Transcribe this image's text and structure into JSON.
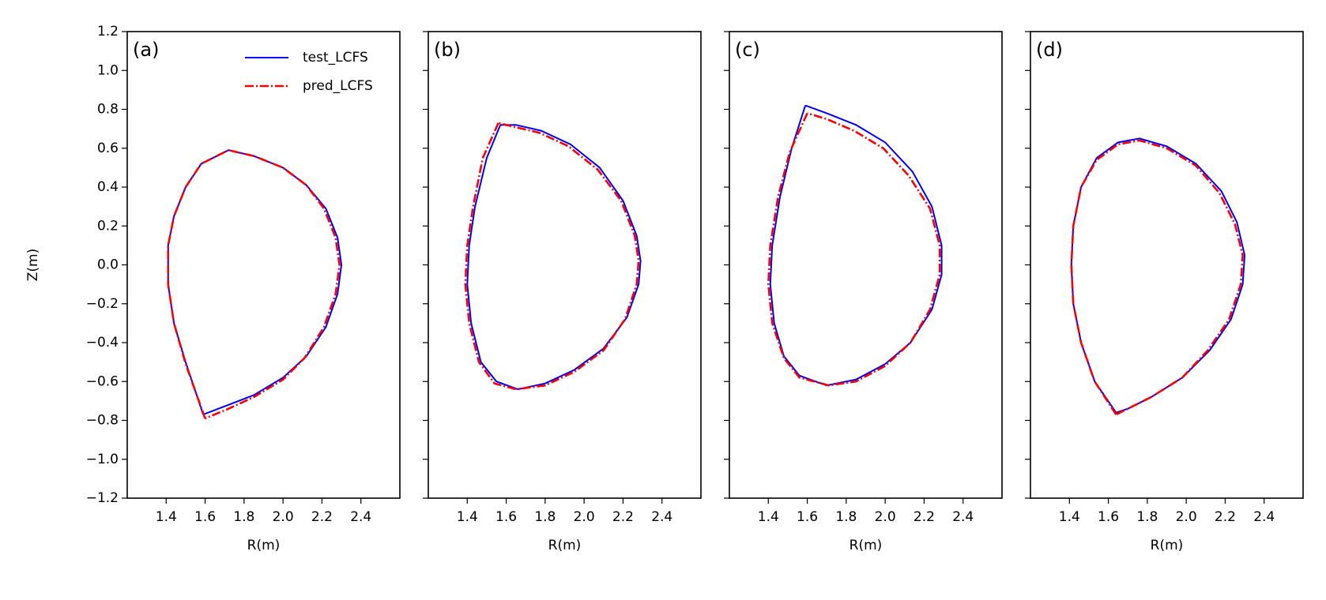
{
  "chart_data": [
    {
      "type": "line",
      "label": "(a)",
      "xlabel": "R(m)",
      "ylabel": "Z(m)",
      "xlim": [
        1.2,
        2.6
      ],
      "ylim": [
        -1.2,
        1.2
      ],
      "xticks": [
        1.4,
        1.6,
        1.8,
        {
          "value": 2.0,
          "label": "2.0"
        },
        2.2,
        2.4
      ],
      "yticks": [
        {
          "value": -1.2,
          "label": "−1.2"
        },
        {
          "value": -1.0,
          "label": "−1.0"
        },
        {
          "value": -0.8,
          "label": "−0.8"
        },
        {
          "value": -0.6,
          "label": "−0.6"
        },
        {
          "value": -0.4,
          "label": "−0.4"
        },
        {
          "value": -0.2,
          "label": "−0.2"
        },
        {
          "value": 0.0,
          "label": "0.0"
        },
        0.2,
        0.4,
        0.6,
        0.8,
        {
          "value": 1.0,
          "label": "1.0"
        },
        1.2
      ],
      "show_ytick_labels": true,
      "legend": "upper right",
      "series": [
        {
          "name": "test_LCFS",
          "color": "#0000ff",
          "linestyle": "solid",
          "x": [
            1.59,
            1.5,
            1.44,
            1.41,
            1.41,
            1.44,
            1.5,
            1.58,
            1.72,
            1.85,
            2.0,
            2.12,
            2.22,
            2.28,
            2.3,
            2.28,
            2.22,
            2.12,
            2.0,
            1.85,
            1.72,
            1.59
          ],
          "values": [
            -0.77,
            -0.5,
            -0.3,
            -0.1,
            0.1,
            0.25,
            0.4,
            0.52,
            0.59,
            0.56,
            0.5,
            0.41,
            0.29,
            0.14,
            0.0,
            -0.15,
            -0.32,
            -0.47,
            -0.58,
            -0.67,
            -0.72,
            -0.77
          ]
        },
        {
          "name": "pred_LCFS",
          "color": "#ff0000",
          "linestyle": "dashdot",
          "x": [
            1.6,
            1.5,
            1.44,
            1.41,
            1.41,
            1.44,
            1.5,
            1.58,
            1.72,
            1.85,
            2.0,
            2.12,
            2.21,
            2.27,
            2.29,
            2.27,
            2.21,
            2.11,
            2.0,
            1.85,
            1.72,
            1.6
          ],
          "values": [
            -0.79,
            -0.51,
            -0.3,
            -0.1,
            0.1,
            0.25,
            0.4,
            0.52,
            0.59,
            0.56,
            0.5,
            0.41,
            0.29,
            0.14,
            0.0,
            -0.15,
            -0.32,
            -0.48,
            -0.59,
            -0.68,
            -0.74,
            -0.79
          ]
        }
      ]
    },
    {
      "type": "line",
      "label": "(b)",
      "xlabel": "R(m)",
      "xlim": [
        1.2,
        2.6
      ],
      "ylim": [
        -1.2,
        1.2
      ],
      "xticks": [
        1.4,
        1.6,
        1.8,
        {
          "value": 2.0,
          "label": "2.0"
        },
        2.2,
        2.4
      ],
      "yticks": [
        -1.2,
        -1.0,
        -0.8,
        -0.6,
        -0.4,
        -0.2,
        0.0,
        0.2,
        0.4,
        0.6,
        0.8,
        1.0,
        1.2
      ],
      "show_ytick_labels": false,
      "series": [
        {
          "color": "#0000ff",
          "linestyle": "solid",
          "x": [
            1.57,
            1.5,
            1.44,
            1.41,
            1.4,
            1.42,
            1.47,
            1.55,
            1.66,
            1.8,
            1.95,
            2.1,
            2.22,
            2.28,
            2.29,
            2.27,
            2.2,
            2.08,
            1.93,
            1.78,
            1.65,
            1.57
          ],
          "values": [
            0.72,
            0.55,
            0.3,
            0.1,
            -0.1,
            -0.3,
            -0.5,
            -0.6,
            -0.64,
            -0.61,
            -0.54,
            -0.43,
            -0.27,
            -0.1,
            0.02,
            0.15,
            0.33,
            0.5,
            0.62,
            0.69,
            0.72,
            0.72
          ]
        },
        {
          "color": "#ff0000",
          "linestyle": "dashdot",
          "x": [
            1.56,
            1.48,
            1.43,
            1.4,
            1.39,
            1.41,
            1.46,
            1.54,
            1.65,
            1.8,
            1.95,
            2.1,
            2.21,
            2.27,
            2.28,
            2.26,
            2.19,
            2.07,
            1.92,
            1.77,
            1.64,
            1.56
          ],
          "values": [
            0.73,
            0.55,
            0.3,
            0.1,
            -0.1,
            -0.3,
            -0.5,
            -0.61,
            -0.64,
            -0.62,
            -0.55,
            -0.44,
            -0.28,
            -0.1,
            0.02,
            0.15,
            0.33,
            0.49,
            0.61,
            0.68,
            0.71,
            0.73
          ]
        }
      ]
    },
    {
      "type": "line",
      "label": "(c)",
      "xlabel": "R(m)",
      "xlim": [
        1.2,
        2.6
      ],
      "ylim": [
        -1.2,
        1.2
      ],
      "xticks": [
        1.4,
        1.6,
        1.8,
        {
          "value": 2.0,
          "label": "2.0"
        },
        2.2,
        2.4
      ],
      "yticks": [
        -1.2,
        -1.0,
        -0.8,
        -0.6,
        -0.4,
        -0.2,
        0.0,
        0.2,
        0.4,
        0.6,
        0.8,
        1.0,
        1.2
      ],
      "show_ytick_labels": false,
      "series": [
        {
          "color": "#0000ff",
          "linestyle": "solid",
          "x": [
            1.59,
            1.52,
            1.46,
            1.42,
            1.41,
            1.43,
            1.48,
            1.56,
            1.7,
            1.85,
            2.0,
            2.13,
            2.24,
            2.29,
            2.29,
            2.24,
            2.14,
            2.0,
            1.85,
            1.7,
            1.59
          ],
          "values": [
            0.82,
            0.6,
            0.35,
            0.1,
            -0.1,
            -0.3,
            -0.47,
            -0.57,
            -0.62,
            -0.59,
            -0.51,
            -0.4,
            -0.23,
            -0.05,
            0.1,
            0.3,
            0.48,
            0.63,
            0.72,
            0.78,
            0.82
          ]
        },
        {
          "color": "#ff0000",
          "linestyle": "dashdot",
          "x": [
            1.6,
            1.51,
            1.45,
            1.41,
            1.4,
            1.42,
            1.48,
            1.56,
            1.71,
            1.85,
            2.0,
            2.13,
            2.23,
            2.28,
            2.28,
            2.23,
            2.12,
            1.99,
            1.84,
            1.7,
            1.6
          ],
          "values": [
            0.78,
            0.58,
            0.35,
            0.1,
            -0.1,
            -0.3,
            -0.48,
            -0.58,
            -0.62,
            -0.6,
            -0.52,
            -0.4,
            -0.23,
            -0.05,
            0.1,
            0.29,
            0.46,
            0.6,
            0.69,
            0.75,
            0.78
          ]
        }
      ]
    },
    {
      "type": "line",
      "label": "(d)",
      "xlabel": "R(m)",
      "xlim": [
        1.2,
        2.6
      ],
      "ylim": [
        -1.2,
        1.2
      ],
      "xticks": [
        1.4,
        1.6,
        1.8,
        {
          "value": 2.0,
          "label": "2.0"
        },
        2.2,
        2.4
      ],
      "yticks": [
        -1.2,
        -1.0,
        -0.8,
        -0.6,
        -0.4,
        -0.2,
        0.0,
        0.2,
        0.4,
        0.6,
        0.8,
        1.0,
        1.2
      ],
      "show_ytick_labels": false,
      "series": [
        {
          "color": "#0000ff",
          "linestyle": "solid",
          "x": [
            1.64,
            1.53,
            1.46,
            1.42,
            1.41,
            1.42,
            1.46,
            1.54,
            1.65,
            1.76,
            1.9,
            2.05,
            2.18,
            2.26,
            2.3,
            2.29,
            2.23,
            2.12,
            1.98,
            1.82,
            1.7,
            1.64
          ],
          "values": [
            -0.76,
            -0.6,
            -0.4,
            -0.2,
            0.0,
            0.2,
            0.4,
            0.55,
            0.63,
            0.65,
            0.61,
            0.52,
            0.38,
            0.22,
            0.05,
            -0.1,
            -0.28,
            -0.44,
            -0.58,
            -0.68,
            -0.74,
            -0.76
          ]
        },
        {
          "color": "#ff0000",
          "linestyle": "dashdot",
          "x": [
            1.64,
            1.53,
            1.46,
            1.42,
            1.41,
            1.42,
            1.46,
            1.54,
            1.65,
            1.76,
            1.9,
            2.05,
            2.17,
            2.25,
            2.29,
            2.28,
            2.22,
            2.11,
            1.98,
            1.82,
            1.7,
            1.64
          ],
          "values": [
            -0.77,
            -0.6,
            -0.4,
            -0.2,
            0.0,
            0.2,
            0.4,
            0.54,
            0.62,
            0.64,
            0.6,
            0.51,
            0.37,
            0.21,
            0.05,
            -0.1,
            -0.28,
            -0.44,
            -0.58,
            -0.68,
            -0.74,
            -0.77
          ]
        }
      ]
    }
  ]
}
